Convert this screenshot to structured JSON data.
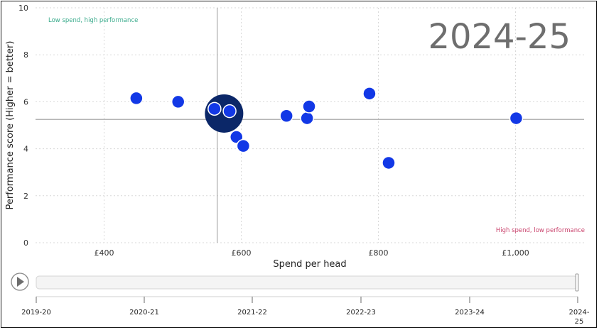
{
  "chart_data": {
    "type": "scatter",
    "title": "",
    "period_label": "2024-25",
    "xlabel": "Spend per head",
    "ylabel": "Performance score (Higher = better)",
    "xlim": [
      300,
      1100
    ],
    "ylim": [
      0,
      10
    ],
    "x_ticks": [
      400,
      600,
      800,
      1000
    ],
    "x_tick_labels": [
      "£400",
      "£600",
      "£800",
      "£1,000"
    ],
    "y_ticks": [
      0,
      2,
      4,
      6,
      8,
      10
    ],
    "y_tick_labels": [
      "0",
      "2",
      "4",
      "6",
      "8",
      "10"
    ],
    "grid": true,
    "reference_lines": {
      "x": 565,
      "y": 5.25
    },
    "annotations": {
      "top_left": "Low spend, high performance",
      "bottom_right": "High spend, low performance"
    },
    "points": [
      {
        "x": 447,
        "y": 6.15,
        "size": "normal"
      },
      {
        "x": 508,
        "y": 6.0,
        "size": "normal"
      },
      {
        "x": 561,
        "y": 5.7,
        "size": "normal"
      },
      {
        "x": 583,
        "y": 5.6,
        "size": "normal"
      },
      {
        "x": 593,
        "y": 4.5,
        "size": "normal"
      },
      {
        "x": 603,
        "y": 4.12,
        "size": "normal"
      },
      {
        "x": 666,
        "y": 5.4,
        "size": "normal"
      },
      {
        "x": 696,
        "y": 5.3,
        "size": "normal"
      },
      {
        "x": 699,
        "y": 5.8,
        "size": "normal"
      },
      {
        "x": 787,
        "y": 6.35,
        "size": "normal"
      },
      {
        "x": 815,
        "y": 3.4,
        "size": "normal"
      },
      {
        "x": 1001,
        "y": 5.3,
        "size": "normal"
      }
    ],
    "highlight_point": {
      "x": 575,
      "y": 5.5,
      "size": "large"
    },
    "colors": {
      "point": "#1238e6",
      "highlight": "#0b2768",
      "top_left_note": "#3aab8c",
      "bottom_right_note": "#c9416b",
      "reference_line": "#aaaaaa",
      "grid": "#d8d8d8"
    }
  },
  "timeline": {
    "labels": [
      "2019-20",
      "2020-21",
      "2021-22",
      "2022-23",
      "2023-24",
      "2024-25"
    ],
    "current_index": 5,
    "progress": 1.0
  },
  "play_button_icon": "play-icon"
}
